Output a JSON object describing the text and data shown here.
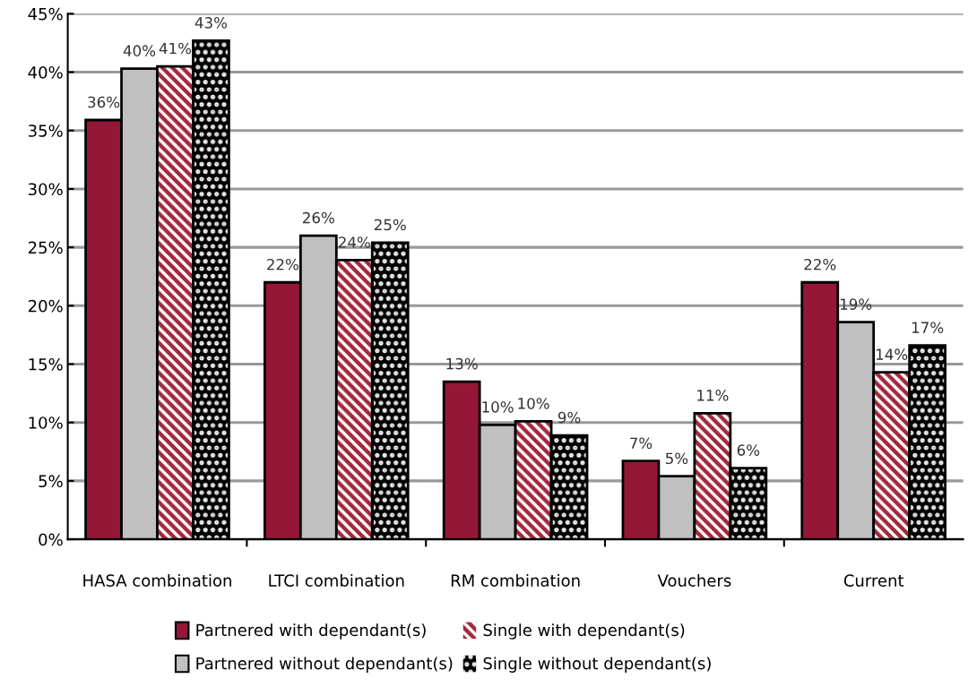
{
  "chart_data": {
    "type": "bar",
    "categories": [
      "HASA combination",
      "LTCI combination",
      "RM combination",
      "Vouchers",
      "Current"
    ],
    "series": [
      {
        "name": "Partnered with dependant(s)",
        "color": "#951737",
        "values": [
          35.9,
          22.0,
          13.5,
          6.7,
          22.0
        ],
        "value_labels": [
          "36%",
          "22%",
          "13%",
          "7%",
          "22%"
        ]
      },
      {
        "name": "Partnered without dependant(s)",
        "color": "#c0c0c0",
        "values": [
          40.3,
          26.0,
          9.8,
          5.4,
          18.6
        ],
        "value_labels": [
          "40%",
          "26%",
          "10%",
          "5%",
          "19%"
        ]
      },
      {
        "name": "Single with dependant(s)",
        "color": "#a3283c",
        "values": [
          40.5,
          23.9,
          10.1,
          10.8,
          14.3
        ],
        "value_labels": [
          "41%",
          "24%",
          "10%",
          "11%",
          "14%"
        ]
      },
      {
        "name": "Single without dependant(s)",
        "color": "#000000",
        "values": [
          42.7,
          25.4,
          8.9,
          6.1,
          16.6
        ],
        "value_labels": [
          "43%",
          "25%",
          "9%",
          "6%",
          "17%"
        ]
      }
    ],
    "ylim": [
      0,
      45
    ],
    "yticks": [
      {
        "value": 0,
        "label": "0%"
      },
      {
        "value": 5,
        "label": "5%"
      },
      {
        "value": 10,
        "label": "10%"
      },
      {
        "value": 15,
        "label": "15%"
      },
      {
        "value": 20,
        "label": "20%"
      },
      {
        "value": 25,
        "label": "25%"
      },
      {
        "value": 30,
        "label": "30%"
      },
      {
        "value": 35,
        "label": "35%"
      },
      {
        "value": 40,
        "label": "40%"
      },
      {
        "value": 45,
        "label": "45%"
      }
    ],
    "grid": "y",
    "legend": "bottom"
  }
}
